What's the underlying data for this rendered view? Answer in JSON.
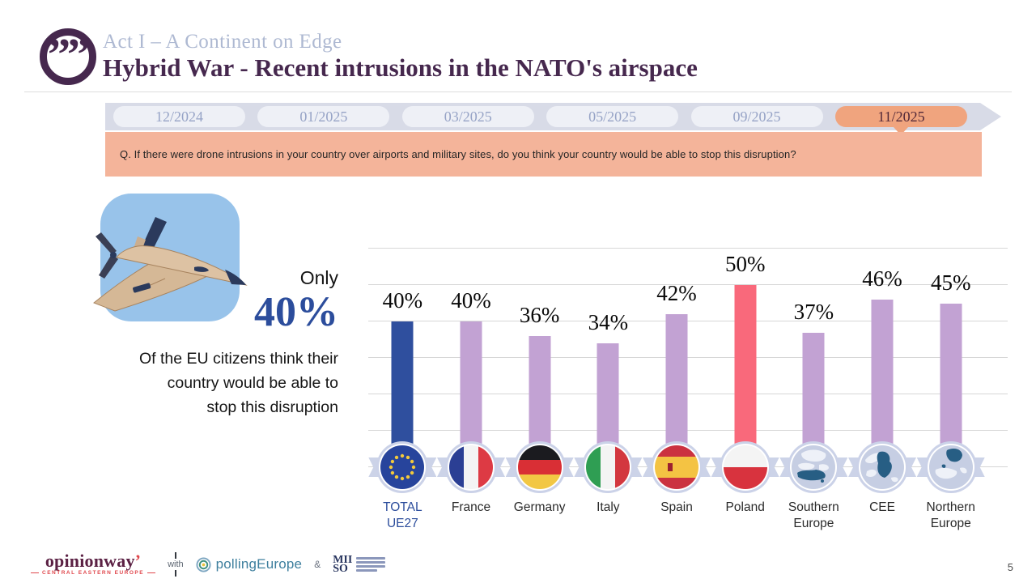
{
  "header": {
    "kicker": "Act I – A Continent on Edge",
    "title": "Hybrid War - Recent intrusions in the NATO's airspace"
  },
  "timeline": {
    "items": [
      {
        "label": "12/2024",
        "active": false
      },
      {
        "label": "01/2025",
        "active": false
      },
      {
        "label": "03/2025",
        "active": false
      },
      {
        "label": "05/2025",
        "active": false
      },
      {
        "label": "09/2025",
        "active": false
      },
      {
        "label": "11/2025",
        "active": true
      }
    ]
  },
  "question": "Q. If there were drone intrusions in your country over airports and military sites, do you think your country would be able to stop this disruption?",
  "highlight": {
    "prefix": "Only",
    "value": "40%",
    "description_lines": [
      "Of the EU citizens think their",
      "country would be able to",
      "stop this disruption"
    ]
  },
  "chart_data": {
    "type": "bar",
    "title": "",
    "categories": [
      "TOTAL UE27",
      "France",
      "Germany",
      "Italy",
      "Spain",
      "Poland",
      "Southern Europe",
      "CEE",
      "Northern Europe"
    ],
    "values": [
      40,
      40,
      36,
      34,
      42,
      50,
      37,
      46,
      45
    ],
    "labels": [
      "40%",
      "40%",
      "36%",
      "34%",
      "42%",
      "50%",
      "37%",
      "46%",
      "45%"
    ],
    "colors": [
      "#2f4f9e",
      "#c2a2d3",
      "#c2a2d3",
      "#c2a2d3",
      "#c2a2d3",
      "#f9697b",
      "#c2a2d3",
      "#c2a2d3",
      "#c2a2d3"
    ],
    "ylim": [
      0,
      70
    ],
    "grid": true,
    "gridline_step": 10,
    "legend": false,
    "highlight_colors": {
      "total_eu": "#2f4f9e",
      "poland": "#f9697b",
      "default": "#c2a2d3"
    }
  },
  "footer": {
    "brand": "opinionway",
    "brand_sub": "CENTRAL EASTERN EUROPE",
    "with_label": "with",
    "partner1": "pollingEurope",
    "amp": "&",
    "partner2_line1": "MII",
    "partner2_line2": "SO"
  },
  "page_number": "5"
}
